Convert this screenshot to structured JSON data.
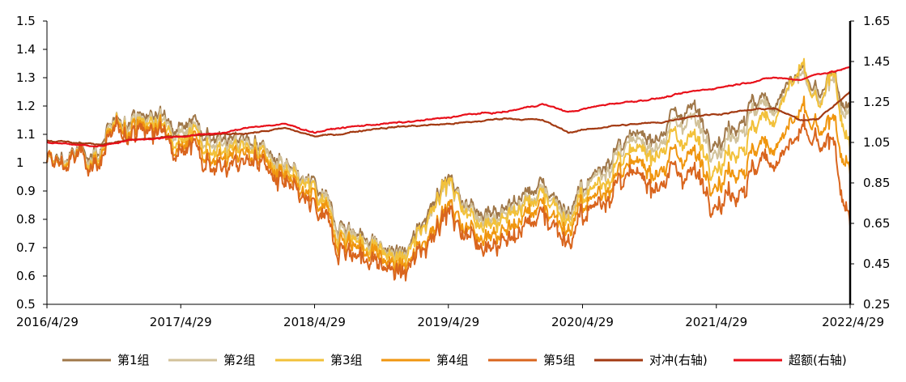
{
  "chart_data": {
    "type": "line",
    "title": "",
    "xlabel": "",
    "ylabel": "",
    "x_tick_labels": [
      "2016/4/29",
      "2017/4/29",
      "2018/4/29",
      "2019/4/29",
      "2020/4/29",
      "2021/4/29",
      "2022/4/29"
    ],
    "x_range": [
      "2016/4/29",
      "2022/4/29"
    ],
    "left_axis": {
      "ylim": [
        0.5,
        1.5
      ],
      "tick_labels": [
        "0.5",
        "0.6",
        "0.7",
        "0.8",
        "0.9",
        "1",
        "1.1",
        "1.2",
        "1.3",
        "1.4",
        "1.5"
      ]
    },
    "right_axis": {
      "ylim": [
        0.25,
        1.65
      ],
      "tick_labels": [
        "0.25",
        "0.45",
        "0.65",
        "0.85",
        "1.05",
        "1.25",
        "1.45",
        "1.65"
      ]
    },
    "grid": false,
    "legend_position": "bottom",
    "x_key_dates": [
      "2016/4/29",
      "2016/9/15",
      "2016/12/1",
      "2017/5/1",
      "2017/9/1",
      "2017/11/20",
      "2018/2/9",
      "2018/4/29",
      "2018/7/1",
      "2018/10/15",
      "2019/1/4",
      "2019/4/15",
      "2019/7/1",
      "2019/10/1",
      "2020/1/10",
      "2020/3/23",
      "2020/7/10",
      "2020/12/1",
      "2021/2/18",
      "2021/5/1",
      "2021/8/1",
      "2021/10/1",
      "2021/12/14",
      "2022/2/1",
      "2022/3/15",
      "2022/4/29"
    ],
    "series": [
      {
        "name": "第1组",
        "axis": "left",
        "color": "#a0784a",
        "values": [
          1.0,
          1.05,
          1.17,
          1.16,
          1.08,
          1.08,
          0.97,
          0.91,
          0.8,
          0.71,
          0.67,
          0.95,
          0.85,
          0.84,
          0.93,
          0.83,
          1.03,
          1.12,
          1.21,
          1.08,
          1.2,
          1.22,
          1.32,
          1.22,
          1.3,
          1.17
        ]
      },
      {
        "name": "第2组",
        "axis": "left",
        "color": "#d2c29a",
        "values": [
          1.0,
          1.04,
          1.16,
          1.14,
          1.06,
          1.07,
          0.96,
          0.9,
          0.79,
          0.7,
          0.66,
          0.93,
          0.83,
          0.82,
          0.91,
          0.82,
          1.01,
          1.09,
          1.17,
          1.05,
          1.17,
          1.2,
          1.3,
          1.2,
          1.28,
          1.14
        ]
      },
      {
        "name": "第3组",
        "axis": "left",
        "color": "#f2c13a",
        "values": [
          1.0,
          1.03,
          1.15,
          1.12,
          1.04,
          1.06,
          0.94,
          0.89,
          0.77,
          0.69,
          0.65,
          0.94,
          0.81,
          0.8,
          0.9,
          0.8,
          0.97,
          1.07,
          1.1,
          1.0,
          1.1,
          1.17,
          1.33,
          1.18,
          1.3,
          1.03
        ]
      },
      {
        "name": "第4组",
        "axis": "left",
        "color": "#f0960f",
        "values": [
          1.0,
          1.02,
          1.14,
          1.1,
          1.01,
          1.04,
          0.92,
          0.86,
          0.75,
          0.67,
          0.62,
          0.85,
          0.77,
          0.76,
          0.86,
          0.77,
          0.94,
          1.0,
          1.04,
          0.94,
          1.02,
          1.07,
          1.17,
          1.09,
          1.14,
          0.95
        ]
      },
      {
        "name": "第5组",
        "axis": "left",
        "color": "#d9651e",
        "values": [
          1.0,
          1.01,
          1.13,
          1.08,
          0.98,
          1.02,
          0.9,
          0.83,
          0.72,
          0.64,
          0.6,
          0.83,
          0.74,
          0.72,
          0.83,
          0.73,
          0.91,
          0.95,
          0.98,
          0.87,
          0.95,
          1.02,
          1.1,
          1.04,
          1.06,
          0.77
        ]
      },
      {
        "name": "对冲(右轴)",
        "axis": "right",
        "color": "#a33a12",
        "values": [
          1.06,
          1.04,
          1.06,
          1.08,
          1.09,
          1.1,
          1.12,
          1.08,
          1.09,
          1.12,
          1.13,
          1.14,
          1.15,
          1.17,
          1.16,
          1.1,
          1.13,
          1.15,
          1.18,
          1.19,
          1.21,
          1.22,
          1.16,
          1.17,
          1.23,
          1.3
        ]
      },
      {
        "name": "超额(右轴)",
        "axis": "right",
        "color": "#e8101a",
        "values": [
          1.05,
          1.03,
          1.06,
          1.08,
          1.1,
          1.13,
          1.14,
          1.1,
          1.12,
          1.14,
          1.15,
          1.17,
          1.19,
          1.2,
          1.24,
          1.2,
          1.24,
          1.27,
          1.3,
          1.32,
          1.35,
          1.37,
          1.36,
          1.39,
          1.4,
          1.42
        ]
      }
    ]
  }
}
